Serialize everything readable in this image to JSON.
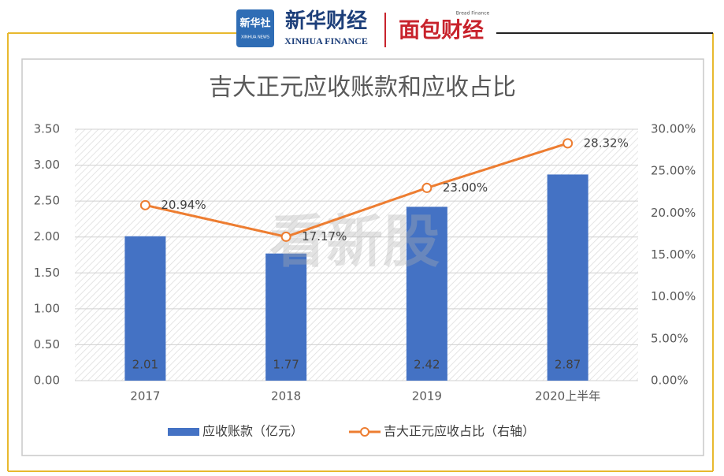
{
  "header": {
    "logo1": "新华社",
    "logo1_sub": "XINHUA NEWS",
    "logo2": "新华财经",
    "logo2_sub": "XINHUA FINANCE",
    "logo3": "面包财经",
    "logo3_sub": "Bread Finance"
  },
  "watermark": "看新股",
  "chart_data": {
    "type": "combo",
    "title": "吉大正元应收账款和应收占比",
    "categories": [
      "2017",
      "2018",
      "2019",
      "2020上半年"
    ],
    "series": [
      {
        "name": "应收账款（亿元）",
        "type": "bar",
        "color": "#4472c4",
        "values": [
          2.01,
          1.77,
          2.42,
          2.87
        ]
      },
      {
        "name": "吉大正元应收占比（右轴）",
        "type": "line",
        "axis": "y2",
        "color": "#ed7d31",
        "values": [
          20.94,
          17.17,
          23.0,
          28.32
        ],
        "value_labels": [
          "20.94%",
          "17.17%",
          "23.00%",
          "28.32%"
        ]
      }
    ],
    "ylim": [
      0,
      3.5
    ],
    "yticks": [
      {
        "value": 0,
        "label": "0.00"
      },
      {
        "value": 0.5,
        "label": "0.50"
      },
      {
        "value": 1,
        "label": "1.00"
      },
      {
        "value": 1.5,
        "label": "1.50"
      },
      {
        "value": 2,
        "label": "2.00"
      },
      {
        "value": 2.5,
        "label": "2.50"
      },
      {
        "value": 3,
        "label": "3.00"
      },
      {
        "value": 3.5,
        "label": "3.50"
      }
    ],
    "y2lim": [
      0,
      30
    ],
    "y2ticks": [
      {
        "value": 0,
        "label": "0.00%"
      },
      {
        "value": 5,
        "label": "5.00%"
      },
      {
        "value": 10,
        "label": "10.00%"
      },
      {
        "value": 15,
        "label": "15.00%"
      },
      {
        "value": 20,
        "label": "20.00%"
      },
      {
        "value": 25,
        "label": "25.00%"
      },
      {
        "value": 30,
        "label": "30.00%"
      }
    ],
    "grid": true,
    "legend": "bottom"
  }
}
